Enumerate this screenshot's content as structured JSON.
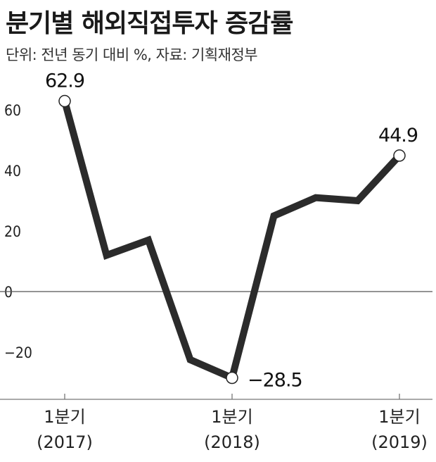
{
  "title": "분기별 해외직접투자 증감률",
  "subtitle": "단위: 전년 동기 대비 %, 자료: 기획재정부",
  "chart_data": {
    "type": "line",
    "title": "분기별 해외직접투자 증감률",
    "subtitle": "단위: 전년 동기 대비 %, 자료: 기획재정부",
    "xlabel": "",
    "ylabel": "",
    "ylim": [
      -36,
      75
    ],
    "yticks": [
      60,
      40,
      20,
      0,
      -20
    ],
    "ytick_labels": [
      "60",
      "40",
      "20",
      "0",
      "−20"
    ],
    "grid": false,
    "zero_line": true,
    "x": [
      "2017 1Q",
      "2017 2Q",
      "2017 3Q",
      "2017 4Q",
      "2018 1Q",
      "2018 2Q",
      "2018 3Q",
      "2018 4Q",
      "2019 1Q"
    ],
    "xtick_labels": [
      {
        "index": 0,
        "line1": "1분기",
        "line2": "(2017)"
      },
      {
        "index": 4,
        "line1": "1분기",
        "line2": "(2018)"
      },
      {
        "index": 8,
        "line1": "1분기",
        "line2": "(2019)"
      }
    ],
    "series": [
      {
        "values": [
          62.9,
          12,
          17,
          -22.5,
          -28.5,
          25,
          31,
          30,
          44.9
        ]
      }
    ],
    "data_labels": [
      {
        "index": 0,
        "text": "62.9"
      },
      {
        "index": 4,
        "text": "−28.5"
      },
      {
        "index": 8,
        "text": "44.9"
      }
    ],
    "colors": {
      "line": "#2b2b2b",
      "marker_fill": "#ffffff",
      "axis": "#555555"
    }
  }
}
